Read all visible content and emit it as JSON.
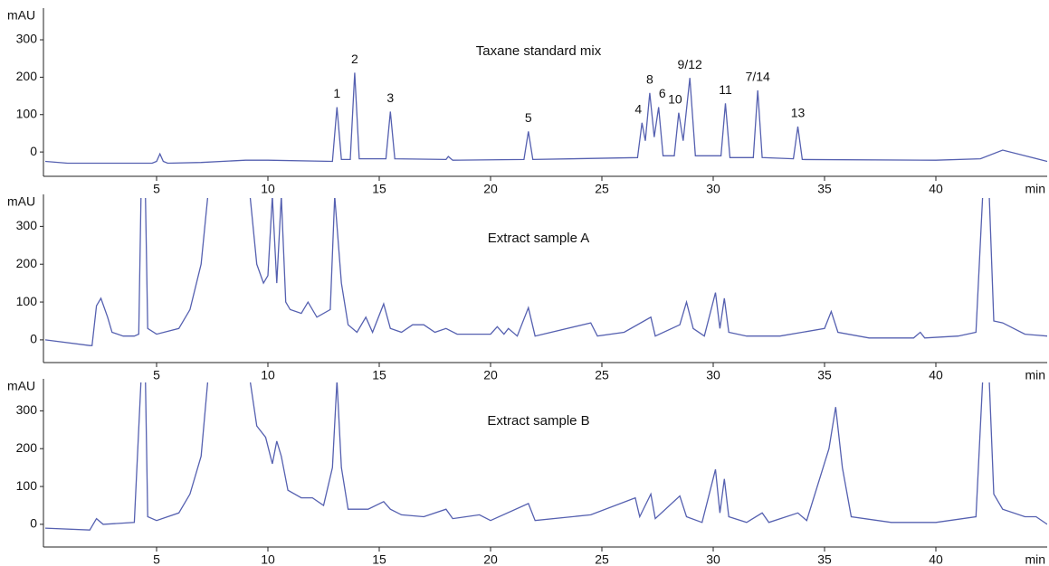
{
  "chart_data": [
    {
      "type": "line",
      "title": "Taxane standard mix",
      "y_label": "mAU",
      "x_label": "min",
      "color": "#5560b0",
      "xlim": [
        0,
        45
      ],
      "ylim": [
        -65,
        375
      ],
      "xticks": [
        5,
        10,
        15,
        20,
        25,
        30,
        35,
        40
      ],
      "yticks": [
        0,
        100,
        200,
        300
      ],
      "x": [
        0,
        1,
        4.8,
        5.0,
        5.15,
        5.3,
        5.5,
        7,
        9,
        10,
        12.9,
        13.1,
        13.3,
        13.7,
        13.9,
        14.1,
        15.3,
        15.5,
        15.7,
        18,
        18.1,
        18.3,
        21.5,
        21.7,
        21.9,
        26.6,
        26.8,
        26.95,
        27.15,
        27.35,
        27.55,
        27.75,
        28.25,
        28.45,
        28.65,
        28.95,
        29.2,
        30.35,
        30.55,
        30.75,
        31.8,
        32.0,
        32.2,
        33.6,
        33.8,
        34.0,
        40,
        42,
        43,
        44,
        45
      ],
      "values": [
        -25,
        -30,
        -30,
        -25,
        -5,
        -25,
        -30,
        -28,
        -22,
        -22,
        -25,
        120,
        -20,
        -20,
        212,
        -18,
        -18,
        108,
        -18,
        -20,
        -12,
        -22,
        -20,
        55,
        -20,
        -15,
        78,
        30,
        158,
        40,
        120,
        -10,
        -10,
        105,
        30,
        198,
        -10,
        -10,
        130,
        -15,
        -15,
        165,
        -15,
        -18,
        68,
        -20,
        -22,
        -18,
        5,
        -10,
        -25
      ],
      "annotations": [
        {
          "label": "1",
          "x": 13.1
        },
        {
          "label": "2",
          "x": 13.9
        },
        {
          "label": "3",
          "x": 15.5
        },
        {
          "label": "5",
          "x": 21.7
        },
        {
          "label": "4",
          "x": 26.8
        },
        {
          "label": "8",
          "x": 27.15
        },
        {
          "label": "6",
          "x": 27.55
        },
        {
          "label": "10",
          "x": 28.45
        },
        {
          "label": "9/12",
          "x": 28.95
        },
        {
          "label": "11",
          "x": 30.55
        },
        {
          "label": "7/14",
          "x": 32.0
        },
        {
          "label": "13",
          "x": 33.8
        }
      ]
    },
    {
      "type": "line",
      "title": "Extract sample A",
      "y_label": "mAU",
      "x_label": "min",
      "color": "#5560b0",
      "xlim": [
        0,
        45
      ],
      "ylim": [
        -60,
        375
      ],
      "xticks": [
        5,
        10,
        15,
        20,
        25,
        30,
        35,
        40
      ],
      "yticks": [
        0,
        100,
        200,
        300
      ],
      "x": [
        0,
        2,
        2.1,
        2.3,
        2.5,
        2.8,
        3,
        3.5,
        4.0,
        4.2,
        4.3,
        4.5,
        4.6,
        5,
        6,
        6.5,
        7,
        7.3,
        9.2,
        9.5,
        9.8,
        10,
        10.2,
        10.4,
        10.6,
        10.8,
        11,
        11.5,
        11.8,
        12.2,
        12.8,
        13,
        13.3,
        13.6,
        14,
        14.4,
        14.7,
        15.2,
        15.5,
        16,
        16.5,
        17,
        17.5,
        18,
        18.5,
        20,
        20.3,
        20.6,
        20.8,
        21.2,
        21.7,
        22,
        24.5,
        24.8,
        26,
        27.2,
        27.4,
        28.5,
        28.8,
        29.1,
        29.6,
        30.1,
        30.3,
        30.5,
        30.7,
        31.5,
        33,
        35,
        35.3,
        35.6,
        37,
        39,
        39.3,
        39.5,
        41,
        41.8,
        42.1,
        42.4,
        42.6,
        43,
        44,
        45
      ],
      "values": [
        0,
        -15,
        -15,
        90,
        110,
        60,
        20,
        10,
        10,
        15,
        380,
        380,
        30,
        15,
        30,
        80,
        200,
        380,
        380,
        200,
        150,
        170,
        380,
        150,
        380,
        100,
        80,
        70,
        100,
        60,
        80,
        380,
        150,
        40,
        20,
        60,
        20,
        95,
        30,
        20,
        40,
        40,
        20,
        30,
        15,
        15,
        35,
        15,
        30,
        10,
        85,
        10,
        45,
        10,
        20,
        60,
        10,
        40,
        100,
        30,
        10,
        125,
        30,
        110,
        20,
        10,
        10,
        30,
        75,
        20,
        5,
        5,
        20,
        5,
        10,
        20,
        380,
        380,
        50,
        45,
        15,
        10
      ]
    },
    {
      "type": "line",
      "title": "Extract sample B",
      "y_label": "mAU",
      "x_label": "min",
      "color": "#5560b0",
      "xlim": [
        0,
        45
      ],
      "ylim": [
        -60,
        375
      ],
      "xticks": [
        5,
        10,
        15,
        20,
        25,
        30,
        35,
        40
      ],
      "yticks": [
        0,
        100,
        200,
        300
      ],
      "x": [
        0,
        2,
        2.3,
        2.6,
        4.0,
        4.3,
        4.5,
        4.6,
        5,
        6,
        6.5,
        7,
        7.3,
        9.2,
        9.5,
        9.9,
        10.2,
        10.4,
        10.6,
        10.9,
        11.5,
        12,
        12.5,
        12.9,
        13.1,
        13.3,
        13.6,
        14.5,
        15.2,
        15.5,
        16,
        17,
        18,
        18.3,
        19.5,
        20,
        21.7,
        22,
        24.5,
        26.5,
        26.7,
        27.2,
        27.4,
        28.5,
        28.8,
        29.5,
        30.1,
        30.3,
        30.5,
        30.7,
        31.5,
        32.2,
        32.5,
        33.8,
        34.2,
        35.2,
        35.5,
        35.8,
        36.2,
        38,
        40,
        41.8,
        42.1,
        42.4,
        42.6,
        43,
        44,
        44.5,
        45
      ],
      "values": [
        -10,
        -15,
        15,
        0,
        5,
        380,
        380,
        20,
        10,
        30,
        80,
        180,
        380,
        380,
        260,
        230,
        160,
        220,
        180,
        90,
        70,
        70,
        50,
        150,
        380,
        150,
        40,
        40,
        60,
        40,
        25,
        20,
        40,
        15,
        25,
        10,
        55,
        10,
        25,
        70,
        20,
        80,
        15,
        75,
        20,
        5,
        145,
        30,
        120,
        20,
        5,
        30,
        5,
        30,
        10,
        200,
        310,
        150,
        20,
        5,
        5,
        20,
        380,
        380,
        80,
        40,
        20,
        20,
        0
      ]
    }
  ]
}
